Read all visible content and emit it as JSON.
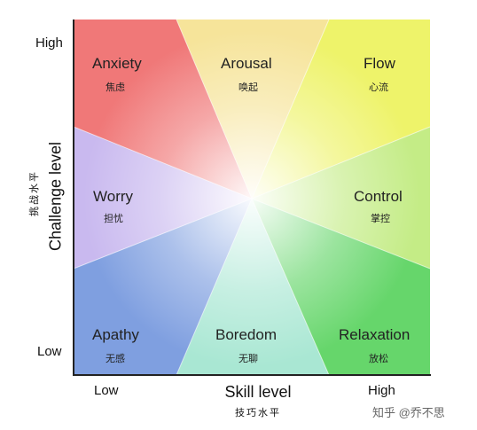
{
  "regions": {
    "anxiety": {
      "title": "Anxiety",
      "subtitle": "焦虑",
      "color": "#f07878"
    },
    "arousal": {
      "title": "Arousal",
      "subtitle": "唤起",
      "color": "#f6e49a"
    },
    "flow": {
      "title": "Flow",
      "subtitle": "心流",
      "color": "#eef36a"
    },
    "worry": {
      "title": "Worry",
      "subtitle": "担忧",
      "color": "#c9b9ef"
    },
    "control": {
      "title": "Control",
      "subtitle": "掌控",
      "color": "#c4ec86"
    },
    "apathy": {
      "title": "Apathy",
      "subtitle": "无感",
      "color": "#7f9fe0"
    },
    "boredom": {
      "title": "Boredom",
      "subtitle": "无聊",
      "color": "#a9e7d3"
    },
    "relaxation": {
      "title": "Relaxation",
      "subtitle": "放松",
      "color": "#66d66b"
    }
  },
  "axes": {
    "y_label": "Challenge level",
    "y_label_cn": "挑战水平",
    "y_high": "High",
    "y_low": "Low",
    "x_label": "Skill level",
    "x_label_cn": "技巧水平",
    "x_low": "Low",
    "x_high": "High"
  },
  "center_color": "#ffffff",
  "watermark": "知乎 @乔不思"
}
